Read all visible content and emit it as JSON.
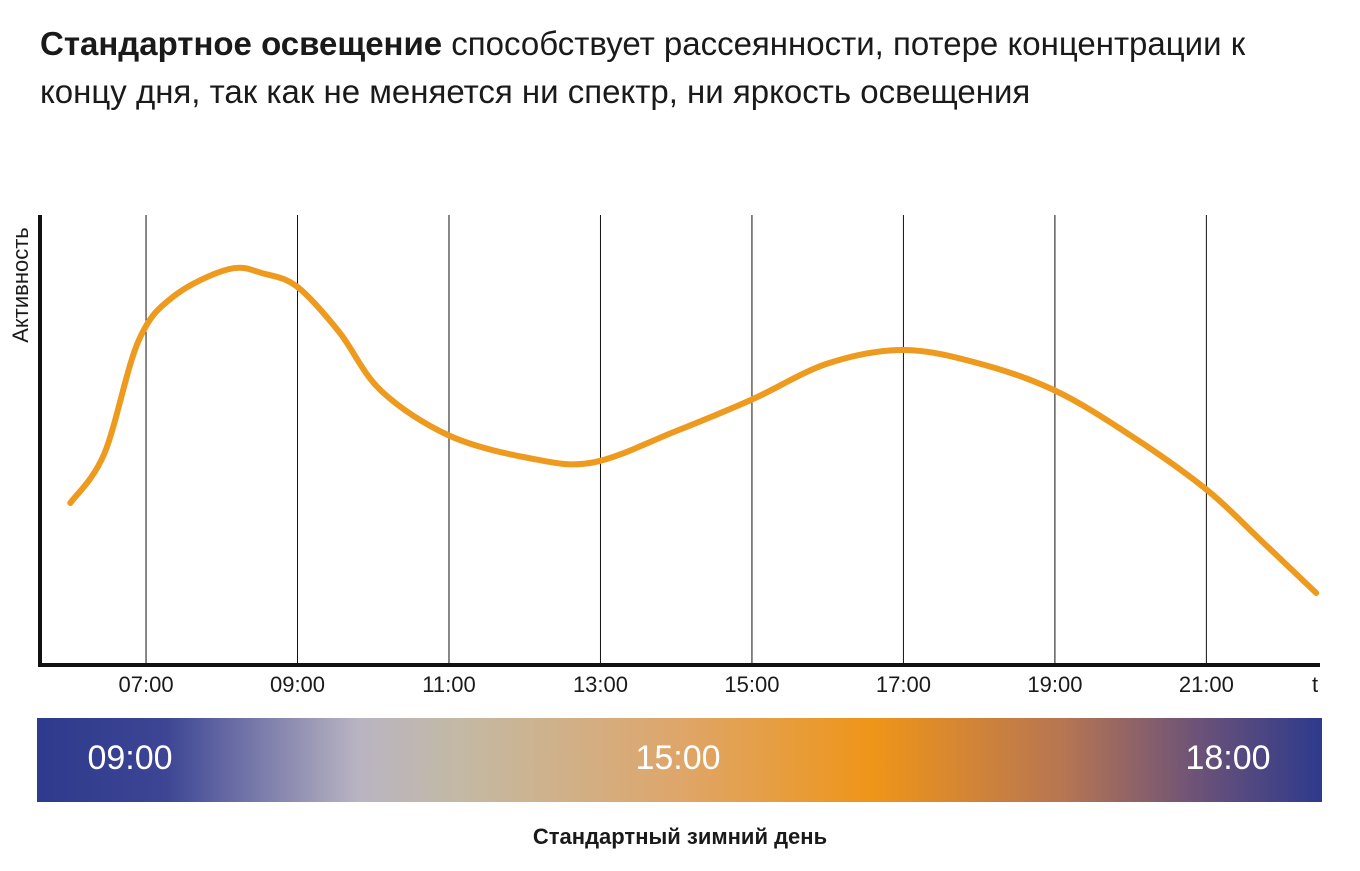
{
  "header": {
    "bold": "Стандартное освещение",
    "text": "способствует рассеянности, потере концентрации к концу дня, так как не меняется ни спектр, ни яркость освещения"
  },
  "chart_data": {
    "type": "line",
    "y_label": "Активность",
    "x_label": "t",
    "color": "#ee9a1e",
    "x": [
      6.0,
      6.45,
      6.9,
      7.37,
      8.1,
      8.55,
      9.0,
      9.55,
      10.1,
      11.0,
      12.05,
      12.9,
      14.0,
      15.0,
      16.0,
      17.0,
      18.0,
      19.0,
      20.0,
      21.0,
      21.7,
      22.45
    ],
    "values": [
      36,
      47,
      72,
      82,
      88,
      87,
      84,
      74,
      61,
      51,
      46,
      45,
      52,
      59,
      67,
      70,
      67,
      61,
      51,
      39,
      28,
      16
    ],
    "xlim": [
      5.6,
      22.5
    ],
    "ylim": [
      0,
      100
    ],
    "xticks": [
      {
        "value": 7,
        "label": "07:00"
      },
      {
        "value": 9,
        "label": "09:00"
      },
      {
        "value": 11,
        "label": "11:00"
      },
      {
        "value": 13,
        "label": "13:00"
      },
      {
        "value": 15,
        "label": "15:00"
      },
      {
        "value": 17,
        "label": "17:00"
      },
      {
        "value": 19,
        "label": "19:00"
      },
      {
        "value": 21,
        "label": "21:00"
      }
    ],
    "grid": true
  },
  "daybar": {
    "labels": [
      "09:00",
      "15:00",
      "18:00"
    ],
    "caption": "Стандартный зимний день"
  }
}
